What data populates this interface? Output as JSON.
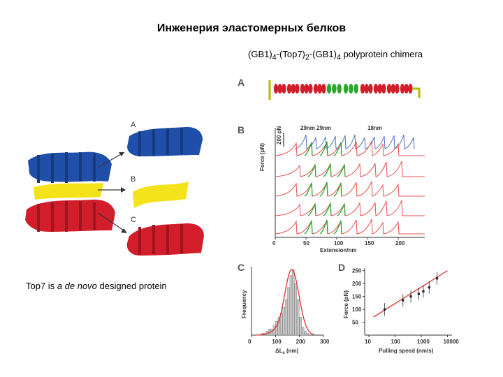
{
  "title": "Инженерия эластомерных белков",
  "subtitle": {
    "parts": [
      "(GB1)",
      "4",
      "-(Top7)",
      "2",
      "-(GB1)",
      "4",
      " polyprotein chimera"
    ]
  },
  "caption": {
    "before": "Top7 is ",
    "italic": "a de novo",
    "after": " designed protein"
  },
  "structure_labels": {
    "a": "A",
    "b": "B",
    "c": "C"
  },
  "panel_a": {
    "letter": "A"
  },
  "panel_b": {
    "letter": "B",
    "scale_bar": "200 pN",
    "annotation_left": "29nm 29nm",
    "annotation_right": "18nm",
    "xlabel": "Extension/nm",
    "ylabel": "Force (pN)",
    "xticks": [
      "0",
      "50",
      "100",
      "150",
      "200"
    ]
  },
  "panel_c": {
    "letter": "C",
    "xlabel": "ΔL",
    "xlabel_sub": "c",
    "xlabel_unit": "(nm)",
    "ylabel": "Frequency",
    "xticks": [
      "0",
      "100",
      "200",
      "300"
    ]
  },
  "panel_d": {
    "letter": "D",
    "xlabel": "Pulling speed (nm/s)",
    "ylabel": "Force (pN)",
    "xticks": [
      "10",
      "100",
      "1000",
      "10000"
    ],
    "yticks": [
      "50",
      "100",
      "150",
      "200",
      "250"
    ]
  },
  "chart_data": [
    {
      "type": "bar",
      "panel": "C",
      "xlabel": "ΔLc (nm)",
      "ylabel": "Frequency",
      "xlim": [
        0,
        300
      ],
      "bins": [
        40,
        50,
        60,
        70,
        80,
        90,
        100,
        110,
        120,
        130,
        140,
        150,
        160,
        170,
        180,
        190,
        200,
        210,
        220,
        230
      ],
      "values": [
        1,
        1,
        2,
        3,
        3,
        5,
        7,
        9,
        11,
        14,
        18,
        24,
        30,
        33,
        26,
        18,
        9,
        4,
        2,
        1
      ],
      "fit_color": "#e03030",
      "bar_color": "#c8c8c8"
    },
    {
      "type": "scatter",
      "panel": "D",
      "xlabel": "Pulling speed (nm/s)",
      "ylabel": "Force (pN)",
      "xscale": "log",
      "xlim": [
        10,
        10000
      ],
      "ylim": [
        0,
        260
      ],
      "x": [
        40,
        200,
        400,
        800,
        1200,
        2000,
        4000
      ],
      "y": [
        100,
        135,
        150,
        160,
        170,
        185,
        220
      ],
      "fit_color": "#e03030"
    }
  ],
  "colors": {
    "blue": "#1f4fa8",
    "yellow": "#f4e21a",
    "red": "#d21e2a",
    "green": "#2aa82a",
    "trace_red": "#e85050",
    "trace_blue": "#4a6fc0"
  }
}
